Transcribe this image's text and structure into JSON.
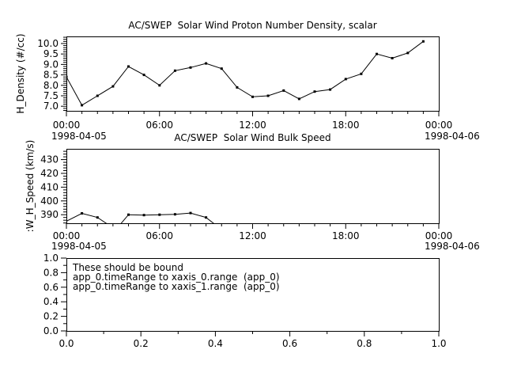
{
  "window": {
    "background": "#ffffff",
    "foreground": "#000000",
    "line_color": "#000000"
  },
  "chart_data": [
    {
      "type": "line",
      "title": "AC/SWEP  Solar Wind Proton Number Density, scalar",
      "ylabel": "H_Density (#/cc)",
      "x_start_date": "1998-04-05",
      "x_end_date": "1998-04-06",
      "xlim": [
        0,
        24
      ],
      "ylim": [
        6.78,
        10.34
      ],
      "grid": false,
      "x_major_ticks": [
        {
          "v": 0,
          "label": "00:00"
        },
        {
          "v": 6,
          "label": "06:00"
        },
        {
          "v": 12,
          "label": "12:00"
        },
        {
          "v": 18,
          "label": "18:00"
        },
        {
          "v": 24,
          "label": "00:00"
        }
      ],
      "x_minor_step": 1,
      "y_major_ticks": [
        {
          "v": 7.0,
          "label": "7.0"
        },
        {
          "v": 7.5,
          "label": "7.5"
        },
        {
          "v": 8.0,
          "label": "8.0"
        },
        {
          "v": 8.5,
          "label": "8.5"
        },
        {
          "v": 9.0,
          "label": "9.0"
        },
        {
          "v": 9.5,
          "label": "9.5"
        },
        {
          "v": 10.0,
          "label": "10.0"
        }
      ],
      "y_minor_step": 0.1,
      "series": [
        {
          "name": "H_Density",
          "x_unit": "hour of 1998-04-05",
          "segments": [
            [
              [
                0,
                8.4
              ],
              [
                1,
                7.05
              ],
              [
                2,
                7.5
              ],
              [
                3,
                7.95
              ],
              [
                4,
                8.9
              ],
              [
                5,
                8.5
              ],
              [
                6,
                8.0
              ],
              [
                7,
                8.7
              ],
              [
                8,
                8.85
              ],
              [
                9,
                9.05
              ],
              [
                10,
                8.8
              ],
              [
                11,
                7.9
              ],
              [
                12,
                7.45
              ],
              [
                13,
                7.5
              ],
              [
                14,
                7.75
              ],
              [
                15,
                7.35
              ],
              [
                16,
                7.7
              ],
              [
                17,
                7.8
              ],
              [
                18,
                8.3
              ],
              [
                19,
                8.55
              ],
              [
                20,
                9.5
              ],
              [
                21,
                9.3
              ],
              [
                22,
                9.55
              ],
              [
                23,
                10.1
              ]
            ]
          ],
          "markers": "all"
        }
      ]
    },
    {
      "type": "line",
      "title": "AC/SWEP  Solar Wind Bulk Speed",
      "ylabel": ":W_H_Speed (km/s)",
      "x_start_date": "1998-04-05",
      "x_end_date": "1998-04-06",
      "xlim": [
        0,
        24
      ],
      "ylim": [
        383.8,
        437.8
      ],
      "grid": false,
      "x_major_ticks": [
        {
          "v": 0,
          "label": "00:00"
        },
        {
          "v": 6,
          "label": "06:00"
        },
        {
          "v": 12,
          "label": "12:00"
        },
        {
          "v": 18,
          "label": "18:00"
        },
        {
          "v": 24,
          "label": "00:00"
        }
      ],
      "x_minor_step": 1,
      "y_major_ticks": [
        {
          "v": 390,
          "label": "390"
        },
        {
          "v": 400,
          "label": "400"
        },
        {
          "v": 410,
          "label": "410"
        },
        {
          "v": 420,
          "label": "420"
        },
        {
          "v": 430,
          "label": "430"
        }
      ],
      "y_minor_step": 2,
      "series": [
        {
          "name": "SW_H_Speed",
          "x_unit": "hour of 1998-04-05",
          "segments": [
            [
              [
                0,
                385.3
              ],
              [
                1,
                391
              ],
              [
                2,
                388
              ],
              [
                2.8,
                382
              ]
            ],
            [
              [
                3.4,
                382
              ],
              [
                4,
                390
              ],
              [
                5,
                389.7
              ],
              [
                6,
                390
              ],
              [
                7,
                390.3
              ],
              [
                8,
                391.2
              ],
              [
                9,
                388
              ],
              [
                9.8,
                381
              ]
            ]
          ],
          "markers": [
            [
              1,
              391
            ],
            [
              2,
              388
            ],
            [
              4,
              390
            ],
            [
              5,
              389.7
            ],
            [
              6,
              390
            ],
            [
              7,
              390.3
            ],
            [
              8,
              391.2
            ],
            [
              9,
              388
            ]
          ]
        }
      ]
    },
    {
      "type": "annotation",
      "title": "",
      "xlim": [
        0,
        1
      ],
      "ylim": [
        0,
        1
      ],
      "grid": false,
      "x_major_ticks": [
        {
          "v": 0,
          "label": "0.0"
        },
        {
          "v": 0.2,
          "label": "0.2"
        },
        {
          "v": 0.4,
          "label": "0.4"
        },
        {
          "v": 0.6,
          "label": "0.6"
        },
        {
          "v": 0.8,
          "label": "0.8"
        },
        {
          "v": 1.0,
          "label": "1.0"
        }
      ],
      "x_minor_step": 0.1,
      "y_major_ticks": [
        {
          "v": 0,
          "label": "0.0"
        },
        {
          "v": 0.2,
          "label": "0.2"
        },
        {
          "v": 0.4,
          "label": "0.4"
        },
        {
          "v": 0.6,
          "label": "0.6"
        },
        {
          "v": 0.8,
          "label": "0.8"
        },
        {
          "v": 1.0,
          "label": "1.0"
        }
      ],
      "y_minor_step": 0.1,
      "series": [],
      "annotation": [
        "These should be bound",
        "app_0.timeRange to xaxis_0.range  (app_0)",
        "app_0.timeRange to xaxis_1.range  (app_0)"
      ]
    }
  ]
}
